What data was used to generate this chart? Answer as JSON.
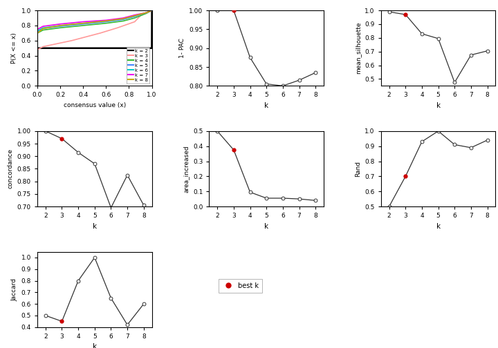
{
  "ecdf_curves": [
    {
      "k": 2,
      "color": "#000000",
      "lw": 1.8,
      "x": [
        0.0,
        0.001,
        0.999,
        1.0
      ],
      "y": [
        0.0,
        0.5,
        0.5,
        1.0
      ]
    },
    {
      "k": 3,
      "color": "#FF9999",
      "lw": 1.2,
      "x": [
        0.0,
        0.001,
        0.05,
        0.3,
        0.55,
        0.7,
        0.85,
        0.9,
        0.95,
        1.0
      ],
      "y": [
        0.0,
        0.48,
        0.52,
        0.6,
        0.7,
        0.77,
        0.85,
        0.93,
        0.97,
        1.0
      ]
    },
    {
      "k": 4,
      "color": "#33BB33",
      "lw": 1.2,
      "x": [
        0.0,
        0.001,
        0.05,
        0.2,
        0.4,
        0.6,
        0.75,
        0.85,
        0.95,
        1.0
      ],
      "y": [
        0.0,
        0.7,
        0.74,
        0.77,
        0.8,
        0.83,
        0.86,
        0.9,
        0.96,
        1.0
      ]
    },
    {
      "k": 5,
      "color": "#4488FF",
      "lw": 1.2,
      "x": [
        0.0,
        0.001,
        0.05,
        0.2,
        0.4,
        0.6,
        0.75,
        0.85,
        0.95,
        1.0
      ],
      "y": [
        0.0,
        0.72,
        0.76,
        0.79,
        0.82,
        0.85,
        0.88,
        0.92,
        0.97,
        1.0
      ]
    },
    {
      "k": 6,
      "color": "#00CCCC",
      "lw": 1.2,
      "x": [
        0.0,
        0.001,
        0.05,
        0.2,
        0.4,
        0.6,
        0.75,
        0.85,
        0.95,
        1.0
      ],
      "y": [
        0.0,
        0.73,
        0.77,
        0.8,
        0.83,
        0.86,
        0.89,
        0.93,
        0.97,
        1.0
      ]
    },
    {
      "k": 7,
      "color": "#EE00EE",
      "lw": 1.2,
      "x": [
        0.0,
        0.001,
        0.05,
        0.2,
        0.4,
        0.6,
        0.75,
        0.85,
        0.95,
        1.0
      ],
      "y": [
        0.0,
        0.75,
        0.79,
        0.82,
        0.85,
        0.87,
        0.9,
        0.94,
        0.97,
        1.0
      ]
    },
    {
      "k": 8,
      "color": "#CCAA00",
      "lw": 1.2,
      "x": [
        0.0,
        0.001,
        0.05,
        0.2,
        0.4,
        0.6,
        0.75,
        0.85,
        0.95,
        1.0
      ],
      "y": [
        0.0,
        0.7,
        0.76,
        0.8,
        0.83,
        0.86,
        0.89,
        0.93,
        0.97,
        1.0
      ]
    }
  ],
  "ecdf_xlabel": "consensus value (x)",
  "ecdf_ylabel": "P(X <= x)",
  "pac": {
    "k": [
      2,
      3,
      4,
      5,
      6,
      7,
      8
    ],
    "y": [
      1.0,
      1.0,
      0.875,
      0.805,
      0.8,
      0.815,
      0.835
    ],
    "best_k_idx": 1,
    "ylabel": "1- PAC",
    "ylim": [
      0.8,
      1.0
    ],
    "yticks": [
      0.8,
      0.85,
      0.9,
      0.95,
      1.0
    ]
  },
  "silhouette": {
    "k": [
      2,
      3,
      4,
      5,
      6,
      7,
      8
    ],
    "y": [
      0.99,
      0.97,
      0.83,
      0.795,
      0.475,
      0.675,
      0.705
    ],
    "best_k_idx": 1,
    "ylabel": "mean_silhouette",
    "ylim": [
      0.45,
      1.0
    ],
    "yticks": [
      0.5,
      0.6,
      0.7,
      0.8,
      0.9,
      1.0
    ]
  },
  "concordance": {
    "k": [
      2,
      3,
      4,
      5,
      6,
      7,
      8
    ],
    "y": [
      1.0,
      0.97,
      0.915,
      0.87,
      0.695,
      0.825,
      0.705
    ],
    "best_k_idx": 1,
    "ylabel": "concordance",
    "ylim": [
      0.7,
      1.0
    ],
    "yticks": [
      0.7,
      0.75,
      0.8,
      0.85,
      0.9,
      0.95,
      1.0
    ]
  },
  "area_increased": {
    "k": [
      2,
      3,
      4,
      5,
      6,
      7,
      8
    ],
    "y": [
      0.5,
      0.375,
      0.095,
      0.055,
      0.055,
      0.05,
      0.04
    ],
    "best_k_idx": 1,
    "ylabel": "area_increased",
    "ylim": [
      0.0,
      0.5
    ],
    "yticks": [
      0.0,
      0.1,
      0.2,
      0.3,
      0.4,
      0.5
    ]
  },
  "rand": {
    "k": [
      2,
      3,
      4,
      5,
      6,
      7,
      8
    ],
    "y": [
      0.5,
      0.7,
      0.93,
      1.0,
      0.91,
      0.89,
      0.94
    ],
    "best_k_idx": 1,
    "ylabel": "Rand",
    "ylim": [
      0.5,
      1.0
    ],
    "yticks": [
      0.5,
      0.6,
      0.7,
      0.8,
      0.9,
      1.0
    ]
  },
  "jaccard": {
    "k": [
      2,
      3,
      4,
      5,
      6,
      7,
      8
    ],
    "y": [
      0.5,
      0.45,
      0.8,
      1.0,
      0.65,
      0.42,
      0.6
    ],
    "best_k_idx": 1,
    "ylabel": "Jaccard",
    "ylim": [
      0.4,
      1.05
    ],
    "yticks": [
      0.4,
      0.5,
      0.6,
      0.7,
      0.8,
      0.9,
      1.0
    ]
  },
  "xlabel_k": "k",
  "best_k_color": "#CC0000",
  "line_color": "#333333",
  "open_marker_fc": "white",
  "open_marker_ec": "#333333",
  "legend_labels": [
    "k = 2",
    "k = 3",
    "k = 4",
    "k = 5",
    "k = 6",
    "k = 7",
    "k = 8"
  ],
  "legend_colors": [
    "#000000",
    "#FF9999",
    "#33BB33",
    "#4488FF",
    "#00CCCC",
    "#EE00EE",
    "#CCAA00"
  ]
}
